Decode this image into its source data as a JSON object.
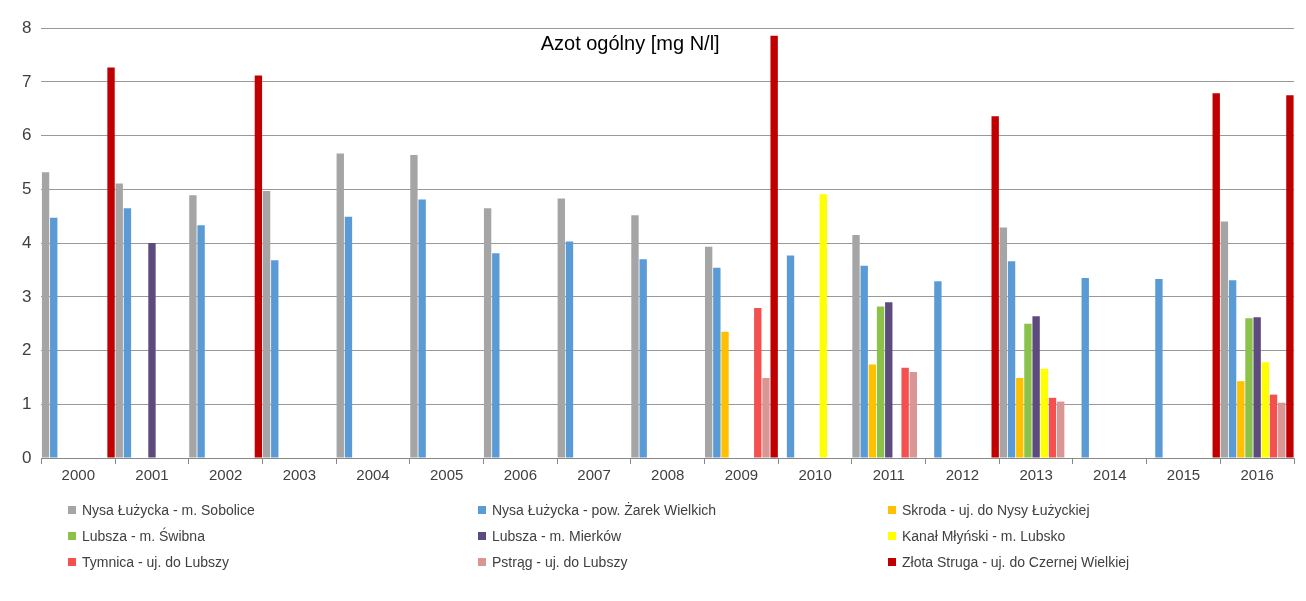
{
  "chart_data": {
    "type": "bar",
    "title": "Azot ogólny [mg N/l]",
    "categories": [
      "2000",
      "2001",
      "2002",
      "2003",
      "2004",
      "2005",
      "2006",
      "2007",
      "2008",
      "2009",
      "2010",
      "2011",
      "2012",
      "2013",
      "2014",
      "2015",
      "2016"
    ],
    "ylim": [
      0,
      8
    ],
    "yticks": [
      0,
      1,
      2,
      3,
      4,
      5,
      6,
      7,
      8
    ],
    "grid": "y",
    "legend": "bottom",
    "series": [
      {
        "name": "Nysa Łużycka - m. Sobolice",
        "color": "#a5a5a5",
        "values": [
          5.32,
          5.11,
          4.89,
          4.97,
          5.67,
          5.64,
          4.65,
          4.83,
          4.52,
          3.93,
          null,
          4.15,
          null,
          4.29,
          null,
          null,
          4.4
        ]
      },
      {
        "name": "Nysa Łużycka - pow. Żarek Wielkich",
        "color": "#5b9bd5",
        "values": [
          4.47,
          4.65,
          4.33,
          3.68,
          4.49,
          4.81,
          3.81,
          4.03,
          3.7,
          3.54,
          3.77,
          3.58,
          3.29,
          3.66,
          3.35,
          3.33,
          3.31
        ]
      },
      {
        "name": "Skroda - uj. do Nysy Łużyckiej",
        "color": "#ffc000",
        "values": [
          null,
          null,
          null,
          null,
          null,
          null,
          null,
          null,
          null,
          2.35,
          null,
          1.74,
          null,
          1.49,
          null,
          null,
          1.43
        ]
      },
      {
        "name": "Lubsza - m. Świbna",
        "color": "#8bc34a",
        "values": [
          null,
          null,
          null,
          null,
          null,
          null,
          null,
          null,
          null,
          null,
          null,
          2.82,
          null,
          2.5,
          null,
          null,
          2.6
        ]
      },
      {
        "name": "Lubsza - m. Mierków",
        "color": "#5e4b7e",
        "values": [
          null,
          4.0,
          null,
          null,
          null,
          null,
          null,
          null,
          null,
          null,
          null,
          2.9,
          null,
          2.64,
          null,
          null,
          2.62
        ]
      },
      {
        "name": "Kanał Młyński - m. Lubsko",
        "color": "#ffff00",
        "values": [
          null,
          null,
          null,
          null,
          null,
          null,
          null,
          null,
          null,
          null,
          4.91,
          null,
          null,
          1.66,
          null,
          null,
          1.78
        ]
      },
      {
        "name": "Tymnica - uj. do Lubszy",
        "color": "#f4504f",
        "values": [
          null,
          null,
          null,
          null,
          null,
          null,
          null,
          null,
          null,
          2.79,
          null,
          1.68,
          null,
          1.12,
          null,
          null,
          1.18
        ]
      },
      {
        "name": "Pstrąg - uj. do Lubszy",
        "color": "#d99694",
        "values": [
          null,
          null,
          null,
          null,
          null,
          null,
          null,
          null,
          null,
          1.49,
          null,
          1.6,
          null,
          1.05,
          null,
          null,
          1.03
        ]
      },
      {
        "name": "Złota Struga - uj. do Czernej Wielkiej",
        "color": "#c00000",
        "values": [
          7.27,
          null,
          7.12,
          null,
          null,
          null,
          null,
          null,
          null,
          7.86,
          null,
          null,
          6.36,
          null,
          null,
          6.79,
          6.75
        ]
      }
    ]
  }
}
